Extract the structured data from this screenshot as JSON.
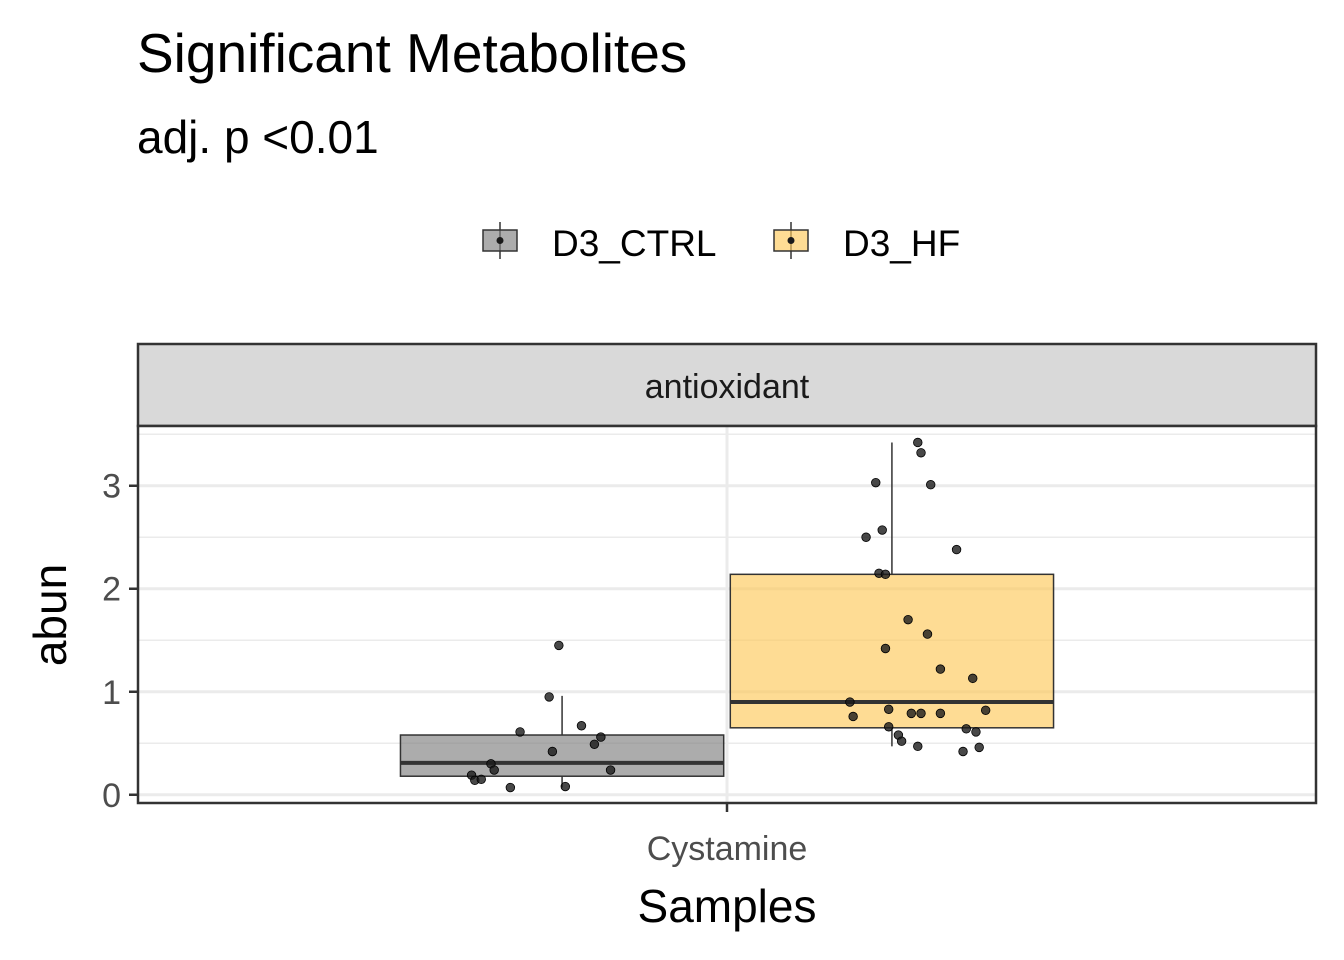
{
  "chart_data": {
    "type": "box",
    "title": "Significant Metabolites",
    "subtitle": "adj. p <0.01",
    "facet": "antioxidant",
    "xlabel": "Samples",
    "ylabel": "abun",
    "categories": [
      "Cystamine"
    ],
    "ylim": [
      -0.08,
      3.58
    ],
    "yticks": [
      0,
      1,
      2,
      3
    ],
    "grid": true,
    "legend_position": "top",
    "series": [
      {
        "name": "D3_CTRL",
        "color": "#808080",
        "box": {
          "q1": 0.18,
          "median": 0.31,
          "q3": 0.58,
          "whisker_low": 0.07,
          "whisker_high": 0.96
        },
        "points": [
          {
            "x": -0.28,
            "y": 0.19
          },
          {
            "x": -0.27,
            "y": 0.14
          },
          {
            "x": -0.25,
            "y": 0.15
          },
          {
            "x": -0.22,
            "y": 0.3
          },
          {
            "x": -0.21,
            "y": 0.24
          },
          {
            "x": -0.16,
            "y": 0.07
          },
          {
            "x": -0.13,
            "y": 0.61
          },
          {
            "x": -0.04,
            "y": 0.95
          },
          {
            "x": -0.03,
            "y": 0.42
          },
          {
            "x": -0.01,
            "y": 1.45
          },
          {
            "x": 0.01,
            "y": 0.08
          },
          {
            "x": 0.06,
            "y": 0.67
          },
          {
            "x": 0.1,
            "y": 0.49
          },
          {
            "x": 0.12,
            "y": 0.56
          },
          {
            "x": 0.15,
            "y": 0.24
          }
        ]
      },
      {
        "name": "D3_HF",
        "color": "#FDC95A",
        "box": {
          "q1": 0.65,
          "median": 0.9,
          "q3": 2.14,
          "whisker_low": 0.47,
          "whisker_high": 3.42
        },
        "points": [
          {
            "x": -0.12,
            "y": 0.76
          },
          {
            "x": -0.08,
            "y": 2.5
          },
          {
            "x": -0.05,
            "y": 3.03
          },
          {
            "x": -0.04,
            "y": 2.15
          },
          {
            "x": -0.03,
            "y": 2.57
          },
          {
            "x": -0.02,
            "y": 2.14
          },
          {
            "x": -0.02,
            "y": 1.42
          },
          {
            "x": -0.01,
            "y": 0.83
          },
          {
            "x": -0.01,
            "y": 0.66
          },
          {
            "x": 0.02,
            "y": 0.58
          },
          {
            "x": 0.03,
            "y": 0.52
          },
          {
            "x": 0.05,
            "y": 1.7
          },
          {
            "x": 0.06,
            "y": 0.79
          },
          {
            "x": 0.08,
            "y": 3.42
          },
          {
            "x": 0.08,
            "y": 0.47
          },
          {
            "x": 0.09,
            "y": 3.32
          },
          {
            "x": 0.09,
            "y": 0.79
          },
          {
            "x": 0.11,
            "y": 1.56
          },
          {
            "x": 0.12,
            "y": 3.01
          },
          {
            "x": 0.15,
            "y": 1.22
          },
          {
            "x": 0.15,
            "y": 0.79
          },
          {
            "x": 0.2,
            "y": 2.38
          },
          {
            "x": 0.22,
            "y": 0.42
          },
          {
            "x": 0.23,
            "y": 0.64
          },
          {
            "x": 0.25,
            "y": 1.13
          },
          {
            "x": 0.26,
            "y": 0.61
          },
          {
            "x": 0.27,
            "y": 0.46
          },
          {
            "x": 0.29,
            "y": 0.82
          },
          {
            "x": -0.13,
            "y": 0.9
          }
        ]
      }
    ]
  }
}
